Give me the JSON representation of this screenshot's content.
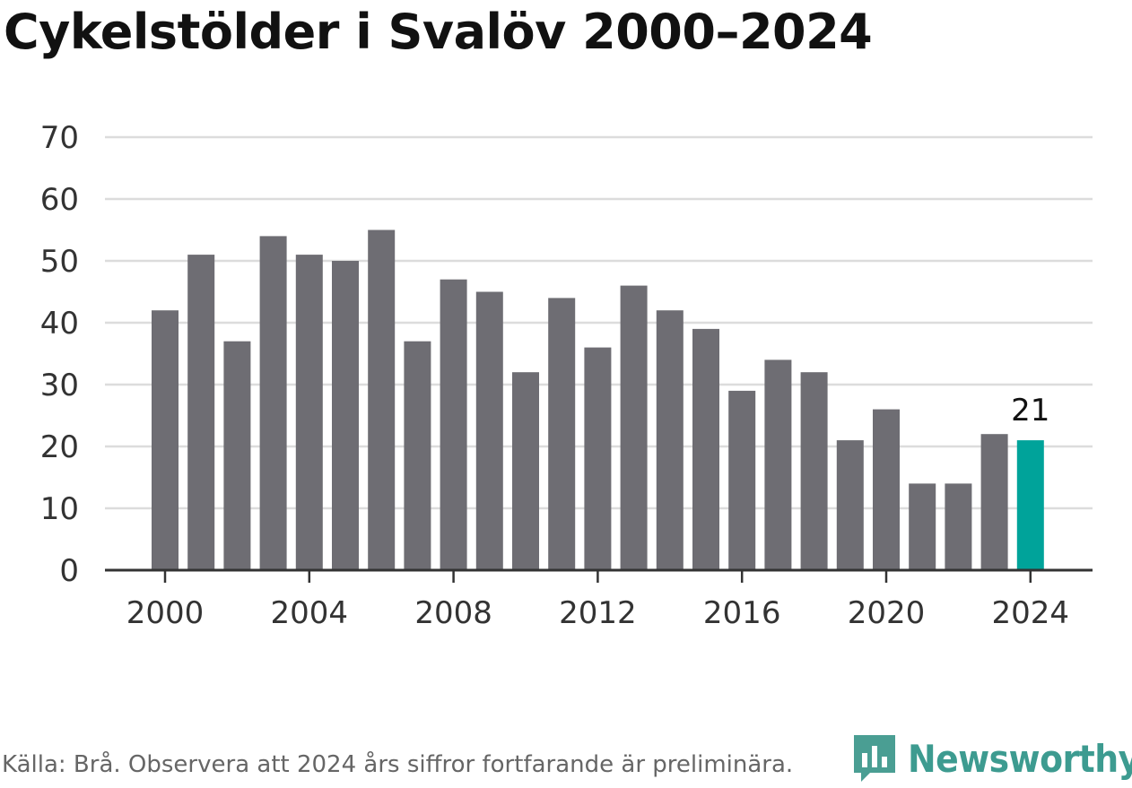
{
  "header": {
    "title": "Cykelstölder i Svalöv 2000–2024"
  },
  "chart_data": {
    "type": "bar",
    "x": [
      2000,
      2001,
      2002,
      2003,
      2004,
      2005,
      2006,
      2007,
      2008,
      2009,
      2010,
      2011,
      2012,
      2013,
      2014,
      2015,
      2016,
      2017,
      2018,
      2019,
      2020,
      2021,
      2022,
      2023,
      2024
    ],
    "values": [
      42,
      51,
      37,
      54,
      51,
      50,
      55,
      37,
      47,
      45,
      32,
      44,
      36,
      46,
      42,
      39,
      29,
      34,
      32,
      21,
      26,
      14,
      14,
      22,
      21
    ],
    "xticks": [
      2000,
      2004,
      2008,
      2012,
      2016,
      2020,
      2024
    ],
    "yticks": [
      0,
      10,
      20,
      30,
      40,
      50,
      60,
      70
    ],
    "ylim": [
      0,
      70
    ],
    "grid": true,
    "bar_color": "#6e6d73",
    "highlight_color": "#00a39a",
    "highlight_index": 24,
    "highlight_label": "21",
    "title": "Cykelstölder i Svalöv 2000–2024",
    "xlabel": "",
    "ylabel": ""
  },
  "footer": {
    "source": "Källa: Brå. Observera att 2024 års siffror fortfarande är preliminära.",
    "brand": "Newsworthy",
    "brand_icon": "newsworthy-logo-icon",
    "brand_color": "#3d9b90"
  }
}
